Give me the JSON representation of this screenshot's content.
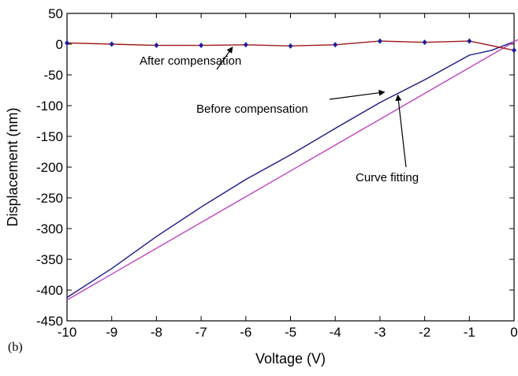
{
  "panel_label": "(b)",
  "chart_data": {
    "type": "line",
    "xlabel": "Voltage (V)",
    "ylabel": "Displacement (nm)",
    "xlim": [
      -10,
      0
    ],
    "ylim": [
      -450,
      50
    ],
    "xticks": [
      -10,
      -9,
      -8,
      -7,
      -6,
      -5,
      -4,
      -3,
      -2,
      -1,
      0
    ],
    "yticks": [
      50,
      0,
      -50,
      -100,
      -150,
      -200,
      -250,
      -300,
      -350,
      -400,
      -450
    ],
    "grid": false,
    "legend": "none",
    "series": [
      {
        "color": "#1a1a8c",
        "x": [
          -10,
          -9,
          -8,
          -7,
          -6,
          -5,
          -4,
          -3,
          -2,
          -1,
          -0.5,
          0
        ],
        "y": [
          -412,
          -365,
          -313,
          -265,
          -220,
          -180,
          -137,
          -95,
          -58,
          -18,
          -10,
          4
        ]
      },
      {
        "color": "#c040c0",
        "x": [
          -10,
          0.1
        ],
        "y": [
          -416,
          8
        ]
      },
      {
        "color": "#a01818",
        "marker_color": "#1a1aa0",
        "x": [
          -10,
          -9,
          -8,
          -7,
          -6,
          -5,
          -4,
          -3,
          -2,
          -1,
          0
        ],
        "y": [
          2,
          0,
          -2,
          -2,
          -1,
          -3,
          -1,
          5,
          3,
          5,
          -10
        ]
      }
    ],
    "annotations": [
      {
        "text": "After compensation",
        "arrow_to": [
          -6.3,
          -5
        ]
      },
      {
        "text": "Before compensation",
        "arrow_to": [
          -2.9,
          -78
        ]
      },
      {
        "text": "Curve fitting",
        "arrow_to": [
          -2.6,
          -83
        ]
      }
    ]
  }
}
